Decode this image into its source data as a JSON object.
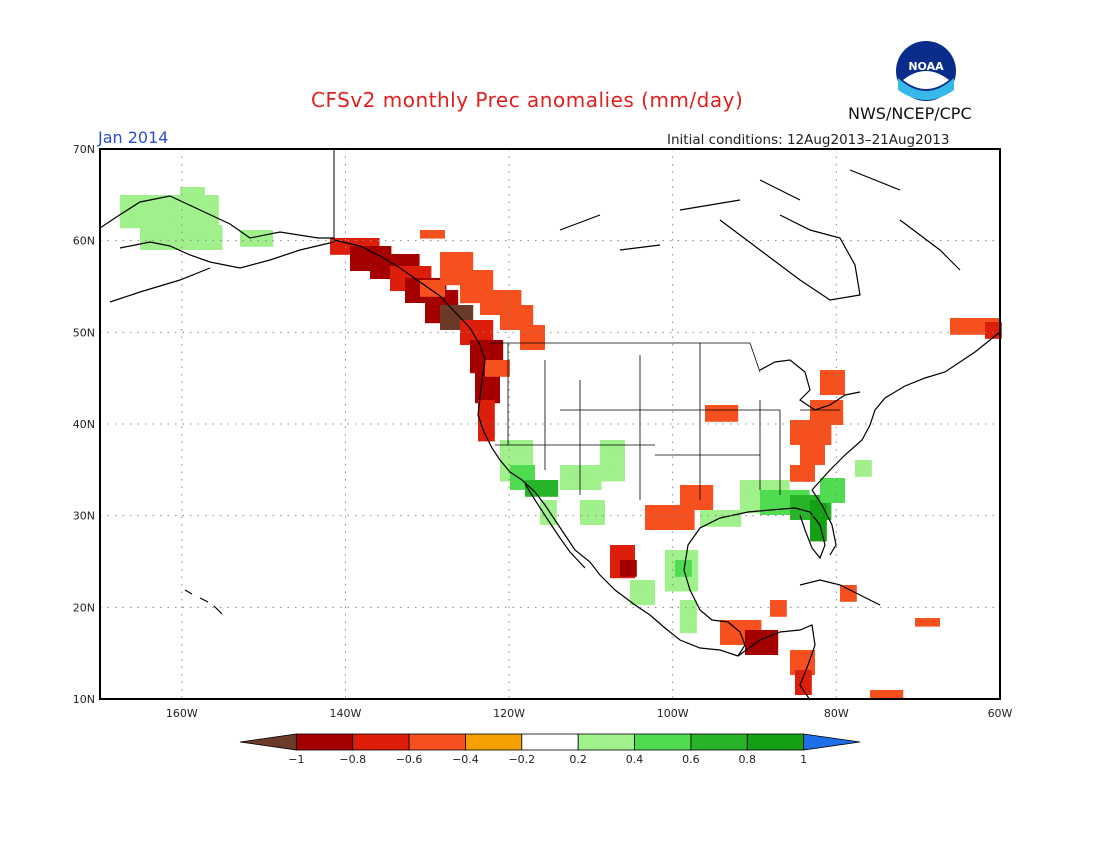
{
  "title": "CFSv2 monthly Prec anomalies (mm/day)",
  "month": "Jan 2014",
  "initial_conditions": "Initial conditions: 12Aug2013–21Aug2013",
  "agency": "NWS/NCEP/CPC",
  "logo_text": "NOAA",
  "lat_labels": [
    "70N",
    "60N",
    "50N",
    "40N",
    "30N",
    "20N",
    "10N"
  ],
  "lon_labels": [
    "160W",
    "140W",
    "120W",
    "100W",
    "80W",
    "60W"
  ],
  "colorbar": {
    "ticks": [
      "−1",
      "−0.8",
      "−0.6",
      "−0.4",
      "−0.2",
      "0.2",
      "0.4",
      "0.6",
      "0.8",
      "1"
    ],
    "colors": [
      "#6b3a28",
      "#a50000",
      "#dc1e0a",
      "#f5501e",
      "#f5a000",
      "#ffffff",
      "#a0f08c",
      "#50dc50",
      "#28b428",
      "#14a014",
      "#1e6ee6"
    ]
  },
  "map": {
    "extent": {
      "lon_min": -170,
      "lon_max": -60,
      "lat_min": 10,
      "lat_max": 70
    },
    "projection": "equirectangular",
    "grid": "dotted every 20 deg lon / 10 deg lat"
  }
}
